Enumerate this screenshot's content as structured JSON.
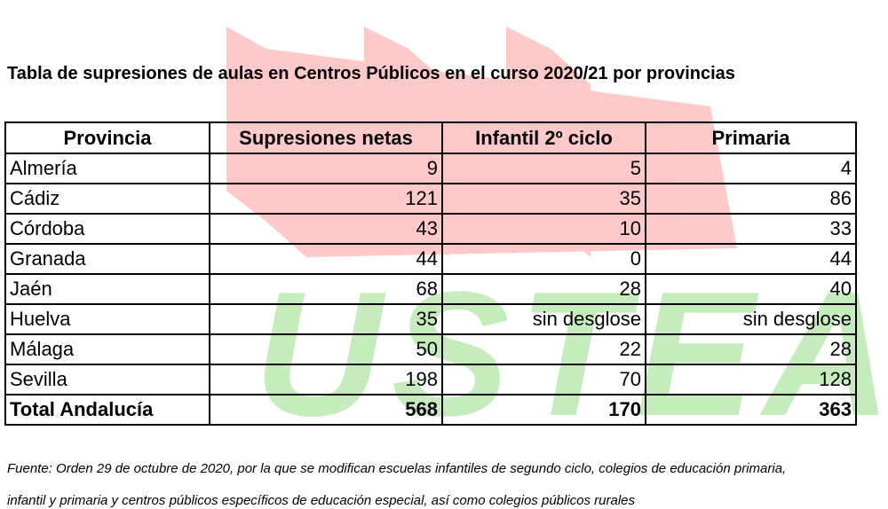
{
  "watermark": "USTEA",
  "title": "Tabla de supresiones de aulas en Centros Públicos en el curso 2020/21 por provincias",
  "table": {
    "header": [
      "Provincia",
      "Supresiones netas",
      "Infantil 2º ciclo",
      "Primaria"
    ],
    "rows": [
      [
        "Almería",
        9,
        5,
        4
      ],
      [
        "Cádiz",
        121,
        35,
        86
      ],
      [
        "Córdoba",
        43,
        10,
        33
      ],
      [
        "Granada",
        44,
        0,
        44
      ],
      [
        "Jaén",
        68,
        28,
        40
      ],
      [
        "Huelva",
        35,
        "sin desglose",
        "sin desglose"
      ],
      [
        "Málaga",
        50,
        22,
        28
      ],
      [
        "Sevilla",
        198,
        70,
        128
      ]
    ],
    "total": [
      "Total Andalucía",
      568,
      170,
      363
    ]
  },
  "footnote": [
    "Fuente: Orden 29 de octubre de 2020, por la que se modifican escuelas infantiles de segundo ciclo, colegios de educación primaria,",
    "infantil y primaria y centros públicos específicos de educación especial, así como colegios públicos rurales"
  ]
}
